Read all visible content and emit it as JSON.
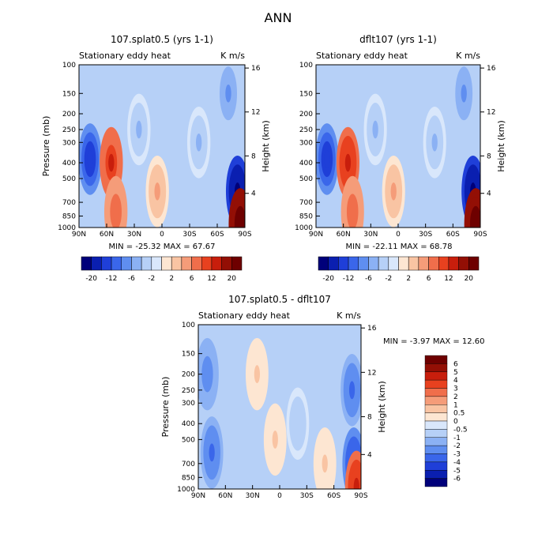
{
  "figure": {
    "title": "ANN"
  },
  "colors": {
    "cool_scale": [
      "#00007a",
      "#0a1fb0",
      "#1f3fd8",
      "#3a66ea",
      "#5f8ef0",
      "#8bb1f4",
      "#b6d0f7",
      "#d9e7fb"
    ],
    "warm_scale": [
      "#fde6d2",
      "#f9c4a3",
      "#f59c79",
      "#f06e4b",
      "#e8411f",
      "#c81e0c",
      "#930f05",
      "#6e0000"
    ],
    "frame": "#000000"
  },
  "chart_data": [
    {
      "id": "panel-1",
      "type": "heatmap",
      "title": "107.splat0.5 (yrs 1-1)",
      "subtitle_left": "Stationary eddy heat",
      "subtitle_right": "K m/s",
      "ylabel": "Pressure (mb)",
      "ylabel_right": "Height (km)",
      "x_ticks": [
        "90N",
        "60N",
        "30N",
        "0",
        "30S",
        "60S",
        "90S"
      ],
      "pressure_ticks": [
        "100",
        "150",
        "200",
        "250",
        "300",
        "400",
        "500",
        "700",
        "850",
        "1000"
      ],
      "height_ticks": [
        "16",
        "12",
        "8",
        "4"
      ],
      "min_max_text": "MIN = -25.32   MAX = 67.67",
      "min": -25.32,
      "max": 67.67,
      "colorbar_labels": [
        "-20",
        "-12",
        "-6",
        "-2",
        "2",
        "6",
        "12",
        "20"
      ],
      "features": [
        {
          "lat": 78,
          "p": 380,
          "value": -8
        },
        {
          "lat": 55,
          "p": 400,
          "value": 6
        },
        {
          "lat": 50,
          "p": 800,
          "value": 3
        },
        {
          "lat": 25,
          "p": 250,
          "value": -1
        },
        {
          "lat": 5,
          "p": 600,
          "value": 1
        },
        {
          "lat": -40,
          "p": 300,
          "value": -1
        },
        {
          "lat": -72,
          "p": 150,
          "value": -2
        },
        {
          "lat": -82,
          "p": 600,
          "value": -16
        },
        {
          "lat": -85,
          "p": 950,
          "value": 20
        }
      ]
    },
    {
      "id": "panel-2",
      "type": "heatmap",
      "title": "dflt107 (yrs 1-1)",
      "subtitle_left": "Stationary eddy heat",
      "subtitle_right": "K m/s",
      "ylabel": "",
      "ylabel_right": "Height (km)",
      "x_ticks": [
        "90N",
        "60N",
        "30N",
        "0",
        "30S",
        "60S",
        "90S"
      ],
      "pressure_ticks": [
        "100",
        "150",
        "200",
        "250",
        "300",
        "400",
        "500",
        "700",
        "850",
        "1000"
      ],
      "height_ticks": [
        "16",
        "12",
        "8",
        "4"
      ],
      "min_max_text": "MIN = -22.11   MAX = 68.78",
      "min": -22.11,
      "max": 68.78,
      "colorbar_labels": [
        "-20",
        "-12",
        "-6",
        "-2",
        "2",
        "6",
        "12",
        "20"
      ],
      "features": [
        {
          "lat": 78,
          "p": 380,
          "value": -8
        },
        {
          "lat": 55,
          "p": 400,
          "value": 7
        },
        {
          "lat": 50,
          "p": 800,
          "value": 3
        },
        {
          "lat": 25,
          "p": 250,
          "value": -1
        },
        {
          "lat": 5,
          "p": 600,
          "value": 1
        },
        {
          "lat": -40,
          "p": 300,
          "value": -1
        },
        {
          "lat": -72,
          "p": 150,
          "value": -2
        },
        {
          "lat": -82,
          "p": 600,
          "value": -14
        },
        {
          "lat": -85,
          "p": 950,
          "value": 20
        }
      ]
    },
    {
      "id": "panel-diff",
      "type": "heatmap",
      "title": "107.splat0.5 - dflt107",
      "subtitle_left": "Stationary eddy heat",
      "subtitle_right": "K m/s",
      "ylabel": "Pressure (mb)",
      "ylabel_right": "Height (km)",
      "x_ticks": [
        "90N",
        "60N",
        "30N",
        "0",
        "30S",
        "60S",
        "90S"
      ],
      "pressure_ticks": [
        "100",
        "150",
        "200",
        "250",
        "300",
        "400",
        "500",
        "700",
        "850",
        "1000"
      ],
      "height_ticks": [
        "16",
        "12",
        "8",
        "4"
      ],
      "min_max_text": "MIN =   -3.97   MAX =   12.60",
      "min": -3.97,
      "max": 12.6,
      "colorbar_labels": [
        "6",
        "5",
        "4",
        "3",
        "2",
        "1",
        "0.5",
        "0",
        "-0.5",
        "-1",
        "-2",
        "-3",
        "-4",
        "-5",
        "-6"
      ],
      "features": [
        {
          "lat": 80,
          "p": 200,
          "value": -2
        },
        {
          "lat": 75,
          "p": 600,
          "value": -3
        },
        {
          "lat": 45,
          "p": 300,
          "value": -0.6
        },
        {
          "lat": 25,
          "p": 200,
          "value": 0.3
        },
        {
          "lat": 5,
          "p": 500,
          "value": 0.3
        },
        {
          "lat": -20,
          "p": 400,
          "value": -0.4
        },
        {
          "lat": -50,
          "p": 700,
          "value": 0.3
        },
        {
          "lat": -80,
          "p": 250,
          "value": -3
        },
        {
          "lat": -82,
          "p": 700,
          "value": -4
        },
        {
          "lat": -85,
          "p": 970,
          "value": 4
        }
      ]
    }
  ]
}
